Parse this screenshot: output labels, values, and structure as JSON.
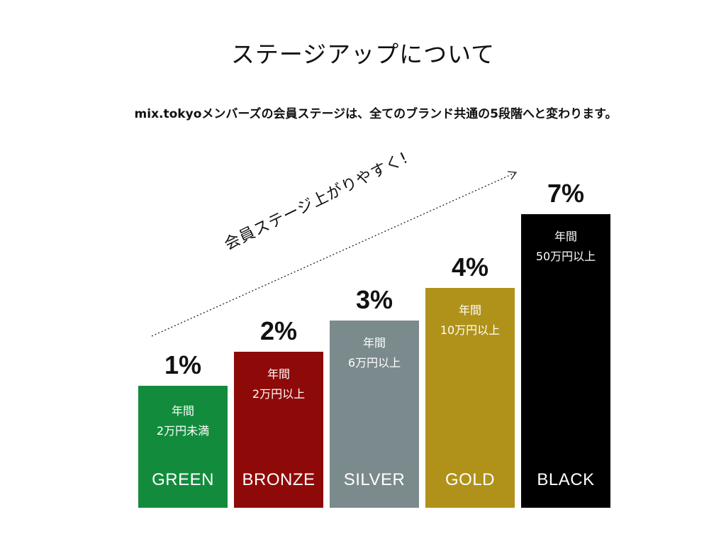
{
  "title": "ステージアップについて",
  "subtitle": "mix.tokyoメンバーズの会員ステージは、全てのブランド共通の5段階へと変わります。",
  "slogan": "会員ステージ上がりやすく!",
  "chart_data": {
    "type": "bar",
    "categories": [
      "GREEN",
      "BRONZE",
      "SILVER",
      "GOLD",
      "BLACK"
    ],
    "values": [
      1,
      2,
      3,
      4,
      7
    ],
    "value_labels": [
      "1%",
      "2%",
      "3%",
      "4%",
      "7%"
    ],
    "conditions": [
      {
        "line1": "年間",
        "line2": "2万円未満"
      },
      {
        "line1": "年間",
        "line2": "2万円以上"
      },
      {
        "line1": "年間",
        "line2": "6万円以上"
      },
      {
        "line1": "年間",
        "line2": "10万円以上"
      },
      {
        "line1": "年間",
        "line2": "50万円以上"
      }
    ],
    "colors": [
      "#128c3c",
      "#8e0a08",
      "#7b8a8c",
      "#b0921a",
      "#000000"
    ],
    "title": "",
    "xlabel": "",
    "ylabel": "",
    "grid": false
  }
}
